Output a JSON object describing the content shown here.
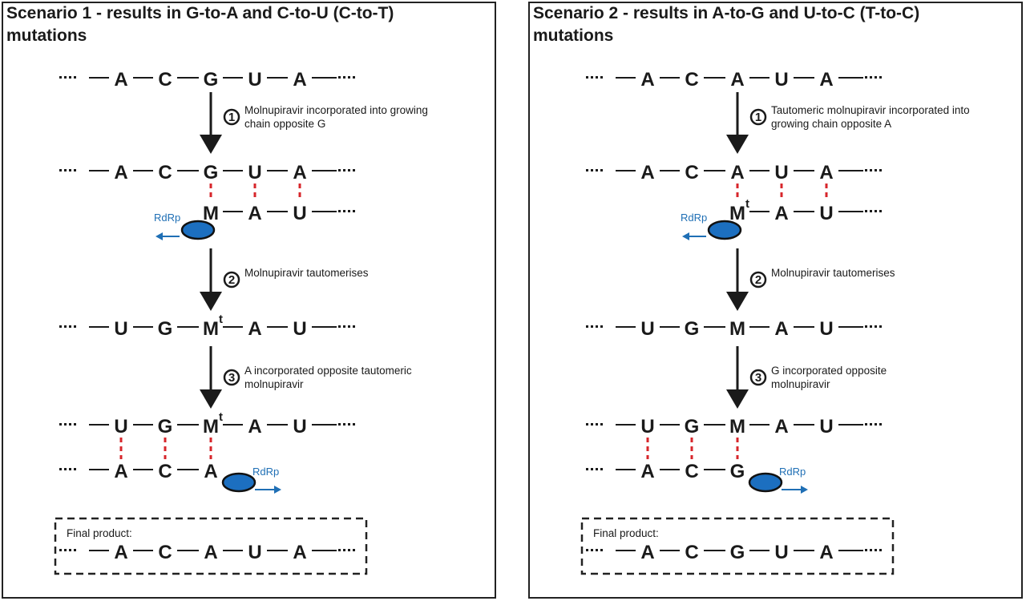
{
  "colors": {
    "text": "#1a1a1a",
    "pair": "#d7262b",
    "rdrp": "#1f6fb5",
    "rdrp_fill": "#1c6fc0",
    "highlight": "#f39c1e"
  },
  "panels": [
    {
      "title_line1": "Scenario 1 - results in G-to-A and C-to-U (C-to-T)",
      "title_line2": "mutations",
      "strands": [
        {
          "bases": [
            {
              "b": "A"
            },
            {
              "b": "C"
            },
            {
              "b": "G"
            },
            {
              "b": "U"
            },
            {
              "b": "A"
            }
          ],
          "leading_dots": true,
          "trailing_dots": true
        },
        {
          "bases": [
            {
              "b": "A"
            },
            {
              "b": "C"
            },
            {
              "b": "G"
            },
            {
              "b": "U"
            },
            {
              "b": "A"
            }
          ],
          "leading_dots": true,
          "trailing_dots": true
        },
        {
          "bases": [
            null,
            null,
            {
              "b": "M"
            },
            {
              "b": "A"
            },
            {
              "b": "U"
            }
          ],
          "leading_dots": false,
          "trailing_dots": true
        },
        {
          "bases": [
            {
              "b": "U"
            },
            {
              "b": "G"
            },
            {
              "b": "M",
              "sup": "t"
            },
            {
              "b": "A"
            },
            {
              "b": "U"
            }
          ],
          "leading_dots": true,
          "trailing_dots": true
        },
        {
          "bases": [
            {
              "b": "U"
            },
            {
              "b": "G"
            },
            {
              "b": "M",
              "sup": "t"
            },
            {
              "b": "A"
            },
            {
              "b": "U"
            }
          ],
          "leading_dots": true,
          "trailing_dots": true
        },
        {
          "bases": [
            {
              "b": "A"
            },
            {
              "b": "C"
            },
            {
              "b": "A"
            },
            null,
            null
          ],
          "leading_dots": true,
          "trailing_dots": false
        }
      ],
      "pairs": [
        [
          2,
          3,
          4
        ],
        [
          0,
          1,
          2
        ]
      ],
      "steps": [
        {
          "number": "1",
          "lines": [
            "Molnupiravir incorporated into growing",
            "chain opposite G"
          ]
        },
        {
          "number": "2",
          "lines": [
            "Molnupiravir tautomerises"
          ]
        },
        {
          "number": "3",
          "lines": [
            "A incorporated opposite tautomeric",
            "molnupiravir"
          ]
        }
      ],
      "rdrp_label": "RdRp",
      "final_label": "Final product:",
      "final_sequence": [
        "A",
        "C",
        "A",
        "U",
        "A"
      ],
      "final_highlight_index": 2
    },
    {
      "title_line1": "Scenario 2 - results in A-to-G and U-to-C (T-to-C)",
      "title_line2": "mutations",
      "strands": [
        {
          "bases": [
            {
              "b": "A"
            },
            {
              "b": "C"
            },
            {
              "b": "A"
            },
            {
              "b": "U"
            },
            {
              "b": "A"
            }
          ],
          "leading_dots": true,
          "trailing_dots": true
        },
        {
          "bases": [
            {
              "b": "A"
            },
            {
              "b": "C"
            },
            {
              "b": "A"
            },
            {
              "b": "U"
            },
            {
              "b": "A"
            }
          ],
          "leading_dots": true,
          "trailing_dots": true
        },
        {
          "bases": [
            null,
            null,
            {
              "b": "M",
              "sup": "t"
            },
            {
              "b": "A"
            },
            {
              "b": "U"
            }
          ],
          "leading_dots": false,
          "trailing_dots": true
        },
        {
          "bases": [
            {
              "b": "U"
            },
            {
              "b": "G"
            },
            {
              "b": "M"
            },
            {
              "b": "A"
            },
            {
              "b": "U"
            }
          ],
          "leading_dots": true,
          "trailing_dots": true
        },
        {
          "bases": [
            {
              "b": "U"
            },
            {
              "b": "G"
            },
            {
              "b": "M"
            },
            {
              "b": "A"
            },
            {
              "b": "U"
            }
          ],
          "leading_dots": true,
          "trailing_dots": true
        },
        {
          "bases": [
            {
              "b": "A"
            },
            {
              "b": "C"
            },
            {
              "b": "G"
            },
            null,
            null
          ],
          "leading_dots": true,
          "trailing_dots": false
        }
      ],
      "pairs": [
        [
          2,
          3,
          4
        ],
        [
          0,
          1,
          2
        ]
      ],
      "steps": [
        {
          "number": "1",
          "lines": [
            "Tautomeric molnupiravir incorporated into",
            "growing chain opposite A"
          ]
        },
        {
          "number": "2",
          "lines": [
            "Molnupiravir tautomerises"
          ]
        },
        {
          "number": "3",
          "lines": [
            "G incorporated opposite",
            "molnupiravir"
          ]
        }
      ],
      "rdrp_label": "RdRp",
      "final_label": "Final product:",
      "final_sequence": [
        "A",
        "C",
        "G",
        "U",
        "A"
      ],
      "final_highlight_index": 2
    }
  ]
}
